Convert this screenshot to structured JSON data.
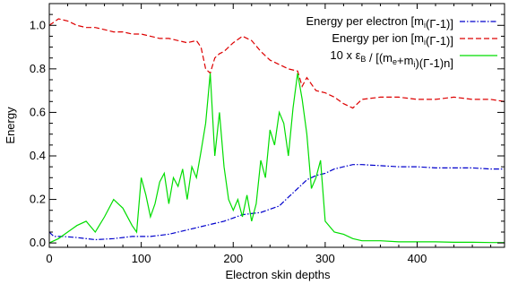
{
  "chart_data": {
    "type": "line",
    "title": "",
    "xlabel": "Electron skin depths",
    "ylabel": "Energy",
    "xlim": [
      0,
      495
    ],
    "ylim": [
      -0.02,
      1.1
    ],
    "xticks": [
      0,
      100,
      200,
      300,
      400
    ],
    "xtick_labels": [
      "0",
      "100",
      "200",
      "300",
      "400"
    ],
    "yticks": [
      0.0,
      0.2,
      0.4,
      0.6,
      0.8,
      1.0
    ],
    "ytick_labels": [
      "0.0",
      "0.2",
      "0.4",
      "0.6",
      "0.8",
      "1.0"
    ],
    "grid": false,
    "legend_position": "top-right",
    "series": [
      {
        "name": "Energy per electron [m",
        "name_sub": "i",
        "name_tail": "(Γ-1)]",
        "color": "#0000cc",
        "style": "dash-dot",
        "x": [
          0,
          5,
          15,
          30,
          50,
          70,
          90,
          110,
          130,
          150,
          170,
          190,
          210,
          230,
          250,
          260,
          270,
          280,
          290,
          300,
          310,
          320,
          330,
          340,
          360,
          380,
          400,
          420,
          440,
          460,
          480,
          495
        ],
        "y": [
          0.05,
          0.03,
          0.03,
          0.025,
          0.015,
          0.02,
          0.03,
          0.03,
          0.04,
          0.06,
          0.08,
          0.1,
          0.13,
          0.14,
          0.17,
          0.21,
          0.25,
          0.29,
          0.31,
          0.32,
          0.34,
          0.35,
          0.36,
          0.36,
          0.355,
          0.35,
          0.35,
          0.345,
          0.345,
          0.345,
          0.34,
          0.34
        ]
      },
      {
        "name": "Energy per ion [m",
        "name_sub": "i",
        "name_tail": "(Γ-1)]",
        "color": "#dd0000",
        "style": "dashed",
        "x": [
          0,
          10,
          20,
          30,
          40,
          50,
          60,
          70,
          80,
          90,
          100,
          110,
          120,
          130,
          140,
          150,
          160,
          165,
          170,
          175,
          180,
          185,
          190,
          200,
          210,
          220,
          230,
          240,
          250,
          260,
          270,
          275,
          280,
          290,
          300,
          310,
          320,
          330,
          340,
          360,
          380,
          400,
          420,
          440,
          460,
          480,
          495
        ],
        "y": [
          1.0,
          1.03,
          1.02,
          1.0,
          0.99,
          0.99,
          0.98,
          0.97,
          0.97,
          0.96,
          0.96,
          0.95,
          0.94,
          0.94,
          0.93,
          0.92,
          0.93,
          0.9,
          0.8,
          0.78,
          0.85,
          0.87,
          0.88,
          0.92,
          0.95,
          0.93,
          0.88,
          0.84,
          0.82,
          0.8,
          0.79,
          0.72,
          0.76,
          0.7,
          0.69,
          0.67,
          0.64,
          0.62,
          0.66,
          0.67,
          0.67,
          0.66,
          0.66,
          0.67,
          0.66,
          0.66,
          0.65
        ]
      },
      {
        "name": "10 x ε",
        "name_sub": "B",
        "name_tail": " / [(m",
        "name_sub2": "e",
        "name_tail2": "+m",
        "name_sub3": "i",
        "name_tail3": ")(Γ-1)n]",
        "color": "#00dd00",
        "style": "solid",
        "x": [
          0,
          10,
          20,
          30,
          40,
          50,
          60,
          70,
          80,
          90,
          95,
          100,
          105,
          110,
          115,
          120,
          125,
          130,
          135,
          140,
          145,
          150,
          155,
          160,
          165,
          170,
          175,
          180,
          185,
          190,
          195,
          200,
          205,
          210,
          215,
          220,
          225,
          230,
          235,
          240,
          245,
          250,
          255,
          260,
          265,
          270,
          275,
          280,
          285,
          290,
          295,
          300,
          310,
          320,
          330,
          340,
          360,
          380,
          400,
          420,
          440,
          460,
          480,
          495
        ],
        "y": [
          0.0,
          0.02,
          0.05,
          0.08,
          0.1,
          0.05,
          0.12,
          0.2,
          0.16,
          0.08,
          0.05,
          0.3,
          0.22,
          0.12,
          0.18,
          0.28,
          0.32,
          0.18,
          0.3,
          0.26,
          0.34,
          0.2,
          0.35,
          0.3,
          0.42,
          0.55,
          0.78,
          0.4,
          0.6,
          0.35,
          0.2,
          0.15,
          0.2,
          0.12,
          0.22,
          0.1,
          0.18,
          0.38,
          0.3,
          0.52,
          0.45,
          0.6,
          0.55,
          0.4,
          0.62,
          0.78,
          0.66,
          0.5,
          0.25,
          0.3,
          0.38,
          0.1,
          0.05,
          0.04,
          0.02,
          0.01,
          0.01,
          0.005,
          0.005,
          0.005,
          0.003,
          0.003,
          0.002,
          0.002
        ]
      }
    ]
  }
}
